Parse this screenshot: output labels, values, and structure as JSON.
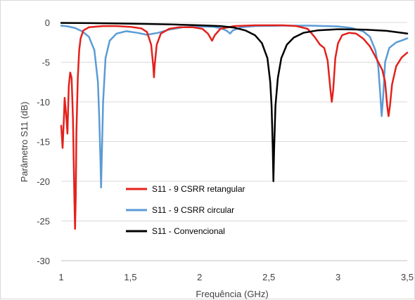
{
  "chart_data": {
    "type": "line",
    "title": "",
    "xlabel": "Frequência (GHz)",
    "ylabel": "Parâmetro S11 (dB)",
    "xlim": [
      1,
      3.5
    ],
    "ylim": [
      -30,
      0
    ],
    "x_ticks": [
      "1",
      "1,5",
      "2",
      "2,5",
      "3",
      "3,5"
    ],
    "x_tick_values": [
      1,
      1.5,
      2,
      2.5,
      3,
      3.5
    ],
    "y_ticks": [
      "0",
      "-5",
      "-10",
      "-15",
      "-20",
      "-25",
      "-30"
    ],
    "y_tick_values": [
      0,
      -5,
      -10,
      -15,
      -20,
      -25,
      -30
    ],
    "grid": "horizontal",
    "legend_position": "lower-left inside plot",
    "series": [
      {
        "name": "S11 - 9 CSRR retangular",
        "color": "#e3211c",
        "points": [
          [
            1.0,
            -13.0
          ],
          [
            1.01,
            -15.8
          ],
          [
            1.02,
            -12.0
          ],
          [
            1.025,
            -9.5
          ],
          [
            1.035,
            -11.5
          ],
          [
            1.045,
            -14.0
          ],
          [
            1.05,
            -11.0
          ],
          [
            1.055,
            -8.0
          ],
          [
            1.065,
            -6.3
          ],
          [
            1.075,
            -7.0
          ],
          [
            1.085,
            -12.0
          ],
          [
            1.095,
            -22.0
          ],
          [
            1.1,
            -26.0
          ],
          [
            1.105,
            -22.0
          ],
          [
            1.11,
            -14.0
          ],
          [
            1.12,
            -7.0
          ],
          [
            1.13,
            -3.5
          ],
          [
            1.14,
            -2.0
          ],
          [
            1.16,
            -1.0
          ],
          [
            1.2,
            -0.6
          ],
          [
            1.3,
            -0.45
          ],
          [
            1.4,
            -0.45
          ],
          [
            1.5,
            -0.55
          ],
          [
            1.58,
            -0.75
          ],
          [
            1.62,
            -1.2
          ],
          [
            1.65,
            -2.8
          ],
          [
            1.665,
            -5.5
          ],
          [
            1.67,
            -6.9
          ],
          [
            1.675,
            -5.5
          ],
          [
            1.69,
            -2.8
          ],
          [
            1.72,
            -1.4
          ],
          [
            1.78,
            -0.8
          ],
          [
            1.85,
            -0.6
          ],
          [
            1.95,
            -0.6
          ],
          [
            2.02,
            -0.8
          ],
          [
            2.06,
            -1.4
          ],
          [
            2.09,
            -2.3
          ],
          [
            2.11,
            -1.6
          ],
          [
            2.15,
            -0.8
          ],
          [
            2.25,
            -0.45
          ],
          [
            2.4,
            -0.35
          ],
          [
            2.6,
            -0.35
          ],
          [
            2.7,
            -0.45
          ],
          [
            2.78,
            -0.8
          ],
          [
            2.83,
            -1.8
          ],
          [
            2.87,
            -2.8
          ],
          [
            2.9,
            -3.2
          ],
          [
            2.925,
            -4.8
          ],
          [
            2.945,
            -8.5
          ],
          [
            2.955,
            -10.0
          ],
          [
            2.965,
            -8.5
          ],
          [
            2.98,
            -4.5
          ],
          [
            3.0,
            -2.6
          ],
          [
            3.03,
            -1.6
          ],
          [
            3.08,
            -1.3
          ],
          [
            3.13,
            -1.4
          ],
          [
            3.18,
            -2.0
          ],
          [
            3.23,
            -3.0
          ],
          [
            3.27,
            -4.3
          ],
          [
            3.3,
            -5.3
          ],
          [
            3.32,
            -6.0
          ],
          [
            3.34,
            -7.5
          ],
          [
            3.355,
            -10.5
          ],
          [
            3.365,
            -11.8
          ],
          [
            3.375,
            -10.5
          ],
          [
            3.39,
            -7.8
          ],
          [
            3.42,
            -5.5
          ],
          [
            3.46,
            -4.4
          ],
          [
            3.5,
            -3.8
          ]
        ]
      },
      {
        "name": "S11 - 9 CSRR circular",
        "color": "#5b9bd5",
        "points": [
          [
            1.0,
            -0.4
          ],
          [
            1.05,
            -0.5
          ],
          [
            1.1,
            -0.7
          ],
          [
            1.15,
            -1.1
          ],
          [
            1.2,
            -1.8
          ],
          [
            1.24,
            -3.5
          ],
          [
            1.265,
            -7.5
          ],
          [
            1.275,
            -12.0
          ],
          [
            1.283,
            -17.0
          ],
          [
            1.288,
            -20.8
          ],
          [
            1.293,
            -17.0
          ],
          [
            1.303,
            -10.0
          ],
          [
            1.32,
            -4.5
          ],
          [
            1.35,
            -2.3
          ],
          [
            1.4,
            -1.4
          ],
          [
            1.47,
            -1.1
          ],
          [
            1.55,
            -1.3
          ],
          [
            1.62,
            -1.55
          ],
          [
            1.7,
            -1.3
          ],
          [
            1.78,
            -0.9
          ],
          [
            1.88,
            -0.6
          ],
          [
            2.0,
            -0.5
          ],
          [
            2.1,
            -0.55
          ],
          [
            2.16,
            -0.75
          ],
          [
            2.2,
            -1.1
          ],
          [
            2.22,
            -1.4
          ],
          [
            2.24,
            -1.0
          ],
          [
            2.3,
            -0.6
          ],
          [
            2.4,
            -0.45
          ],
          [
            2.6,
            -0.4
          ],
          [
            2.8,
            -0.4
          ],
          [
            3.0,
            -0.5
          ],
          [
            3.1,
            -0.7
          ],
          [
            3.18,
            -1.1
          ],
          [
            3.23,
            -1.8
          ],
          [
            3.27,
            -3.5
          ],
          [
            3.29,
            -5.5
          ],
          [
            3.305,
            -9.0
          ],
          [
            3.315,
            -11.8
          ],
          [
            3.325,
            -9.5
          ],
          [
            3.34,
            -5.0
          ],
          [
            3.37,
            -3.2
          ],
          [
            3.42,
            -2.5
          ],
          [
            3.47,
            -2.2
          ],
          [
            3.5,
            -2.0
          ]
        ]
      },
      {
        "name": "S11 - Convencional",
        "color": "#000000",
        "points": [
          [
            1.0,
            -0.05
          ],
          [
            1.2,
            -0.08
          ],
          [
            1.4,
            -0.12
          ],
          [
            1.6,
            -0.18
          ],
          [
            1.8,
            -0.25
          ],
          [
            2.0,
            -0.35
          ],
          [
            2.15,
            -0.45
          ],
          [
            2.25,
            -0.65
          ],
          [
            2.33,
            -1.0
          ],
          [
            2.4,
            -1.6
          ],
          [
            2.45,
            -2.6
          ],
          [
            2.49,
            -4.5
          ],
          [
            2.51,
            -7.5
          ],
          [
            2.52,
            -10.5
          ],
          [
            2.528,
            -15.5
          ],
          [
            2.533,
            -20.0
          ],
          [
            2.538,
            -16.0
          ],
          [
            2.548,
            -10.5
          ],
          [
            2.565,
            -7.0
          ],
          [
            2.59,
            -4.5
          ],
          [
            2.63,
            -2.8
          ],
          [
            2.68,
            -1.9
          ],
          [
            2.75,
            -1.3
          ],
          [
            2.85,
            -1.0
          ],
          [
            3.0,
            -0.85
          ],
          [
            3.2,
            -0.9
          ],
          [
            3.35,
            -1.05
          ],
          [
            3.5,
            -1.4
          ]
        ]
      }
    ]
  }
}
